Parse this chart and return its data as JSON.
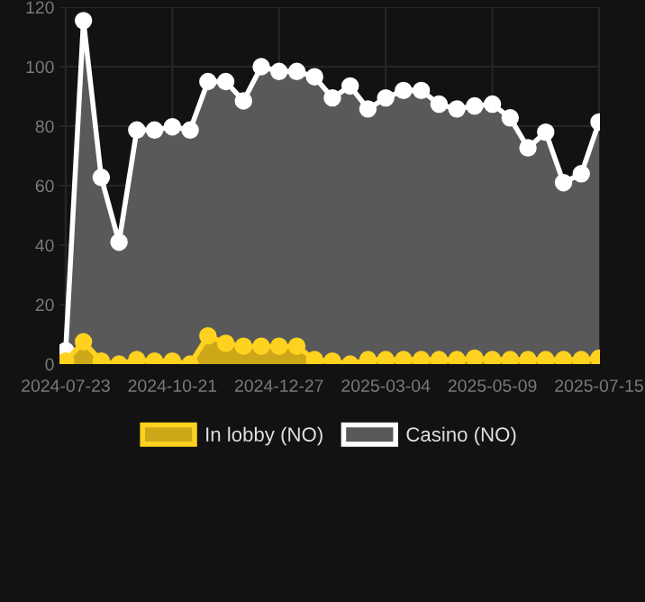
{
  "chart_data": {
    "type": "area",
    "categories": [
      "2024-07-23",
      null,
      null,
      null,
      null,
      null,
      "2024-10-21",
      null,
      null,
      null,
      null,
      null,
      "2024-12-27",
      null,
      null,
      null,
      null,
      null,
      "2025-03-04",
      null,
      null,
      null,
      null,
      null,
      "2025-05-09",
      null,
      null,
      null,
      null,
      null,
      "2025-07-15"
    ],
    "series": [
      {
        "name": "In lobby (NO)",
        "color": "#ffd21f",
        "values": [
          1,
          7.5,
          1,
          0,
          1.5,
          1,
          1,
          0,
          9.5,
          7,
          6,
          6,
          6,
          6,
          1.5,
          1,
          0,
          1.5,
          1.5,
          1.5,
          1.5,
          1.5,
          1.5,
          2,
          1.5,
          1.5,
          1.5,
          1.5,
          1.5,
          1.5,
          2
        ]
      },
      {
        "name": "Casino (NO)",
        "color": "#ffffff",
        "values": [
          4.5,
          115.5,
          62.8,
          41,
          78.7,
          78.7,
          79.8,
          78.7,
          95,
          95,
          88.5,
          100,
          98.4,
          98.4,
          96.6,
          89.5,
          93.5,
          85.8,
          89.5,
          92,
          92,
          87.4,
          85.8,
          86.8,
          87.4,
          82.8,
          72.7,
          78,
          61,
          64,
          81.4
        ]
      }
    ],
    "ylim": [
      0,
      120
    ],
    "yticks": [
      0,
      20,
      40,
      60,
      80,
      100,
      120
    ],
    "grid": true,
    "legend": "bottom",
    "marker": "circle",
    "line_style": "solid"
  }
}
